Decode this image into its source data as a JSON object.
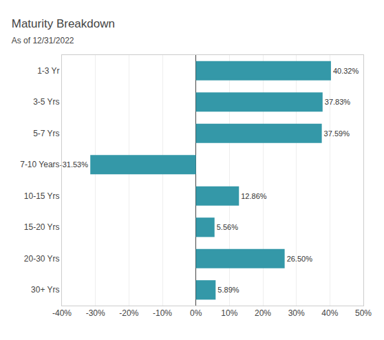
{
  "chart_data": {
    "type": "bar",
    "orientation": "horizontal",
    "title": "Maturity Breakdown",
    "subtitle": "As of 12/31/2022",
    "categories": [
      "1-3 Yr",
      "3-5 Yrs",
      "5-7 Yrs",
      "7-10 Years",
      "10-15 Yrs",
      "15-20 Yrs",
      "20-30 Yrs",
      "30+ Yrs"
    ],
    "values": [
      40.32,
      37.83,
      37.59,
      -31.53,
      12.86,
      5.56,
      26.5,
      5.89
    ],
    "value_labels": [
      "40.32%",
      "37.83%",
      "37.59%",
      "-31.53%",
      "12.86%",
      "5.56%",
      "26.50%",
      "5.89%"
    ],
    "data_labels": true,
    "color": "#3498a8",
    "xlim": [
      -40,
      50
    ],
    "xticks": [
      {
        "value": -40,
        "label": "-40%"
      },
      {
        "value": -30,
        "label": "-30%"
      },
      {
        "value": -20,
        "label": "-20%"
      },
      {
        "value": -10,
        "label": "-10%"
      },
      {
        "value": 0,
        "label": "0%"
      },
      {
        "value": 10,
        "label": "10%"
      },
      {
        "value": 20,
        "label": "20%"
      },
      {
        "value": 30,
        "label": "30%"
      },
      {
        "value": 40,
        "label": "40%"
      },
      {
        "value": 50,
        "label": "50%"
      }
    ],
    "grid": true
  }
}
